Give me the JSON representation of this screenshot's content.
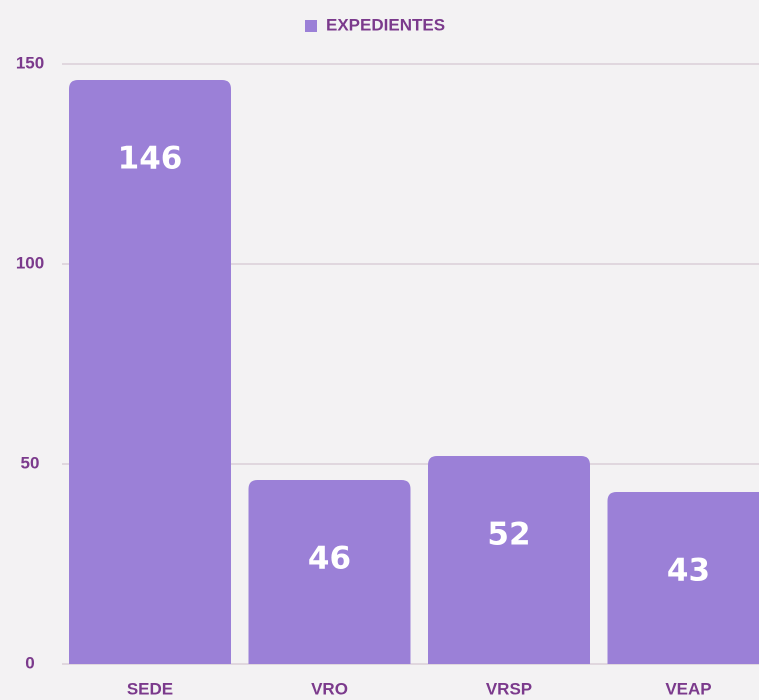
{
  "chart_data": {
    "type": "bar",
    "categories": [
      "SEDE",
      "VRO",
      "VRSP",
      "VEAP"
    ],
    "series": [
      {
        "name": "EXPEDIENTES",
        "color": "#9b80d7",
        "values": [
          146,
          46,
          52,
          43
        ]
      }
    ],
    "ylim": [
      0,
      150
    ],
    "yticks": [
      0,
      50,
      100,
      150
    ],
    "grid": true,
    "legend": "top"
  }
}
